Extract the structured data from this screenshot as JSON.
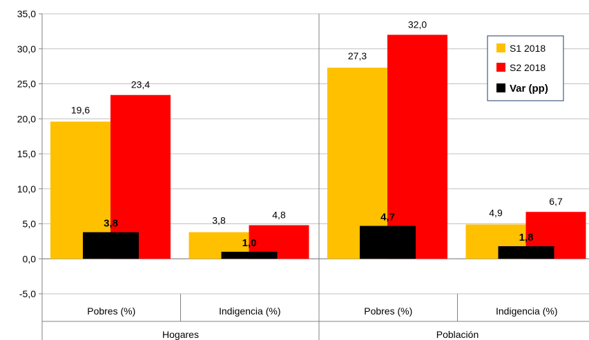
{
  "chart_data": {
    "type": "bar",
    "title": "",
    "xlabel": "",
    "ylabel": "",
    "ylim": [
      -5,
      35
    ],
    "yticks": [
      "-5,0",
      "0,0",
      "5,0",
      "10,0",
      "15,0",
      "20,0",
      "25,0",
      "30,0",
      "35,0"
    ],
    "grid": true,
    "legend_position": "top-right",
    "groups": [
      {
        "label": "Hogares",
        "categories": [
          "Pobres (%)",
          "Indigencia (%)"
        ]
      },
      {
        "label": "Población",
        "categories": [
          "Pobres (%)",
          "Indigencia (%)"
        ]
      }
    ],
    "categories": [
      "Pobres (%)",
      "Indigencia (%)",
      "Pobres (%)",
      "Indigencia (%)"
    ],
    "series": [
      {
        "name": "S1 2018",
        "color": "#FFC000",
        "values": [
          19.6,
          3.8,
          27.3,
          4.9
        ],
        "labels": [
          "19,6",
          "3,8",
          "27,3",
          "4,9"
        ]
      },
      {
        "name": "S2 2018",
        "color": "#FF0000",
        "values": [
          23.4,
          4.8,
          32.0,
          6.7
        ],
        "labels": [
          "23,4",
          "4,8",
          "32,0",
          "6,7"
        ]
      },
      {
        "name": "Var (pp)",
        "color": "#000000",
        "values": [
          3.8,
          1.0,
          4.7,
          1.8
        ],
        "labels": [
          "3,8",
          "1,0",
          "4,7",
          "1,8"
        ]
      }
    ]
  }
}
